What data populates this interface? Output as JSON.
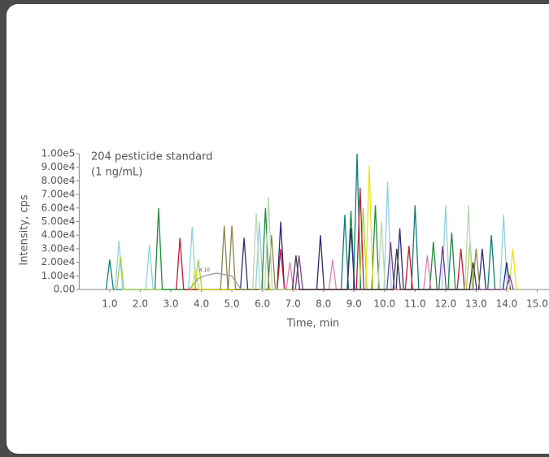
{
  "chart_data": {
    "type": "line",
    "title": "204 pesticide standard",
    "subtitle": "(1 ng/mL)",
    "x_label": "Time, min",
    "y_label": "Intensity, cps",
    "annotations": [
      {
        "text": "4.10",
        "x": 4.1,
        "y": 14000
      }
    ],
    "xlim": [
      0,
      15.2
    ],
    "ylim": [
      0,
      100000
    ],
    "xticks": [
      {
        "value": 1,
        "label": "1.0"
      },
      {
        "value": 2,
        "label": "2.0"
      },
      {
        "value": 3,
        "label": "3.0"
      },
      {
        "value": 4,
        "label": "4.0"
      },
      {
        "value": 5,
        "label": "5.0"
      },
      {
        "value": 6,
        "label": "6.0"
      },
      {
        "value": 7,
        "label": "7.0"
      },
      {
        "value": 8,
        "label": "8.0"
      },
      {
        "value": 9,
        "label": "9.0"
      },
      {
        "value": 10,
        "label": "10.0"
      },
      {
        "value": 11,
        "label": "11.0"
      },
      {
        "value": 12,
        "label": "12.0"
      },
      {
        "value": 13,
        "label": "13.0"
      },
      {
        "value": 14,
        "label": "14.0"
      },
      {
        "value": 15,
        "label": "15.0"
      }
    ],
    "yticks": [
      {
        "value": 0,
        "label": "0.00"
      },
      {
        "value": 10000,
        "label": "1.00e4"
      },
      {
        "value": 20000,
        "label": "2.00e4"
      },
      {
        "value": 30000,
        "label": "3.00e4"
      },
      {
        "value": 40000,
        "label": "4.00e4"
      },
      {
        "value": 50000,
        "label": "5.00e4"
      },
      {
        "value": 60000,
        "label": "6.00e4"
      },
      {
        "value": 70000,
        "label": "7.00e4"
      },
      {
        "value": 80000,
        "label": "8.00e4"
      },
      {
        "value": 90000,
        "label": "9.00e4"
      },
      {
        "value": 100000,
        "label": "1.00e5"
      }
    ],
    "series": [
      {
        "color": "#0e7c7b",
        "x": [
          0.88,
          1.0,
          1.12,
          8.58,
          8.7,
          8.82,
          8.98,
          9.1,
          9.22,
          10.88,
          11.0,
          11.12,
          13.38,
          13.5,
          13.62
        ],
        "values": [
          0,
          22000,
          0,
          0,
          55000,
          0,
          0,
          100000,
          0,
          0,
          62000,
          0,
          0,
          40000,
          0
        ]
      },
      {
        "color": "#8fd0e8",
        "x": [
          1.18,
          1.3,
          1.42,
          2.18,
          2.3,
          2.42,
          3.58,
          3.7,
          3.82,
          5.78,
          5.9,
          6.02,
          9.98,
          10.1,
          10.22,
          11.88,
          12.0,
          12.12,
          13.78,
          13.9,
          14.02
        ],
        "values": [
          0,
          36000,
          0,
          0,
          33000,
          0,
          0,
          46000,
          0,
          0,
          50000,
          0,
          0,
          79000,
          0,
          0,
          62000,
          0,
          0,
          55000,
          0
        ]
      },
      {
        "color": "#a6d23a",
        "x": [
          1.23,
          1.35,
          1.47,
          3.78,
          3.9,
          4.02,
          9.18,
          9.3,
          9.42,
          12.68,
          12.8,
          12.92
        ],
        "values": [
          0,
          24000,
          0,
          0,
          22000,
          0,
          0,
          60000,
          0,
          0,
          35000,
          0
        ]
      },
      {
        "color": "#1e8c3a",
        "x": [
          2.48,
          2.6,
          2.72,
          5.98,
          6.1,
          6.22,
          8.78,
          8.9,
          9.02,
          9.58,
          9.7,
          9.82,
          11.48,
          11.6,
          11.72,
          12.08,
          12.2,
          12.32
        ],
        "values": [
          0,
          60000,
          0,
          0,
          60000,
          0,
          0,
          58000,
          0,
          0,
          62000,
          0,
          0,
          35000,
          0,
          0,
          42000,
          0
        ]
      },
      {
        "color": "#2a2a7a",
        "x": [
          5.28,
          5.4,
          5.52,
          6.48,
          6.6,
          6.72,
          7.78,
          7.9,
          8.02,
          8.78,
          8.9,
          9.02,
          10.38,
          10.5,
          10.62,
          13.08,
          13.2,
          13.32,
          13.88,
          14.0,
          14.12
        ],
        "values": [
          0,
          38000,
          0,
          0,
          50000,
          0,
          0,
          40000,
          0,
          0,
          45000,
          0,
          0,
          45000,
          0,
          0,
          30000,
          0,
          0,
          20000,
          0
        ]
      },
      {
        "color": "#c41a2e",
        "x": [
          3.18,
          3.3,
          3.42,
          6.48,
          6.6,
          6.72,
          9.08,
          9.2,
          9.32,
          10.68,
          10.8,
          10.92,
          12.38,
          12.5,
          12.62
        ],
        "values": [
          0,
          38000,
          0,
          0,
          30000,
          0,
          0,
          75000,
          0,
          0,
          32000,
          0,
          0,
          30000,
          0
        ]
      },
      {
        "color": "#e6e619",
        "x": [
          3.68,
          3.8,
          3.92,
          9.38,
          9.5,
          9.62,
          14.08,
          14.2,
          14.32
        ],
        "values": [
          0,
          15000,
          0,
          0,
          91000,
          0,
          0,
          30000,
          0
        ]
      },
      {
        "color": "#8b8448",
        "x": [
          4.63,
          4.75,
          4.87,
          4.88,
          5.0,
          5.12,
          6.18,
          6.3,
          6.42,
          12.88,
          13.0,
          13.12
        ],
        "values": [
          0,
          47000,
          0,
          0,
          47000,
          0,
          0,
          40000,
          0,
          0,
          30000,
          0
        ]
      },
      {
        "color": "#b8d8b0",
        "x": [
          5.68,
          5.8,
          5.92,
          6.08,
          6.2,
          6.32,
          9.78,
          9.9,
          10.02,
          12.63,
          12.75,
          12.87
        ],
        "values": [
          0,
          56000,
          0,
          0,
          68000,
          0,
          0,
          50000,
          0,
          0,
          62000,
          0
        ]
      },
      {
        "color": "#7b3f99",
        "x": [
          7.08,
          7.2,
          7.32,
          10.08,
          10.2,
          10.32,
          11.78,
          11.9,
          12.02,
          13.98,
          14.1,
          14.22
        ],
        "values": [
          0,
          25000,
          0,
          0,
          35000,
          0,
          0,
          32000,
          0,
          0,
          10000,
          0
        ]
      },
      {
        "color": "#e07fb0",
        "x": [
          6.78,
          6.9,
          7.02,
          8.18,
          8.3,
          8.42,
          11.28,
          11.4,
          11.52
        ],
        "values": [
          0,
          20000,
          0,
          0,
          22000,
          0,
          0,
          25000,
          0
        ]
      },
      {
        "color": "#3a3a3a",
        "x": [
          6.98,
          7.1,
          7.22,
          10.28,
          10.4,
          10.52,
          12.78,
          12.9,
          13.02
        ],
        "values": [
          0,
          25000,
          0,
          0,
          30000,
          0,
          0,
          20000,
          0
        ]
      },
      {
        "color": "#9a9a9a",
        "x": [
          3.6,
          3.9,
          4.1,
          4.5,
          5.0,
          5.3
        ],
        "values": [
          0,
          8000,
          10000,
          12000,
          10000,
          0
        ]
      }
    ]
  }
}
